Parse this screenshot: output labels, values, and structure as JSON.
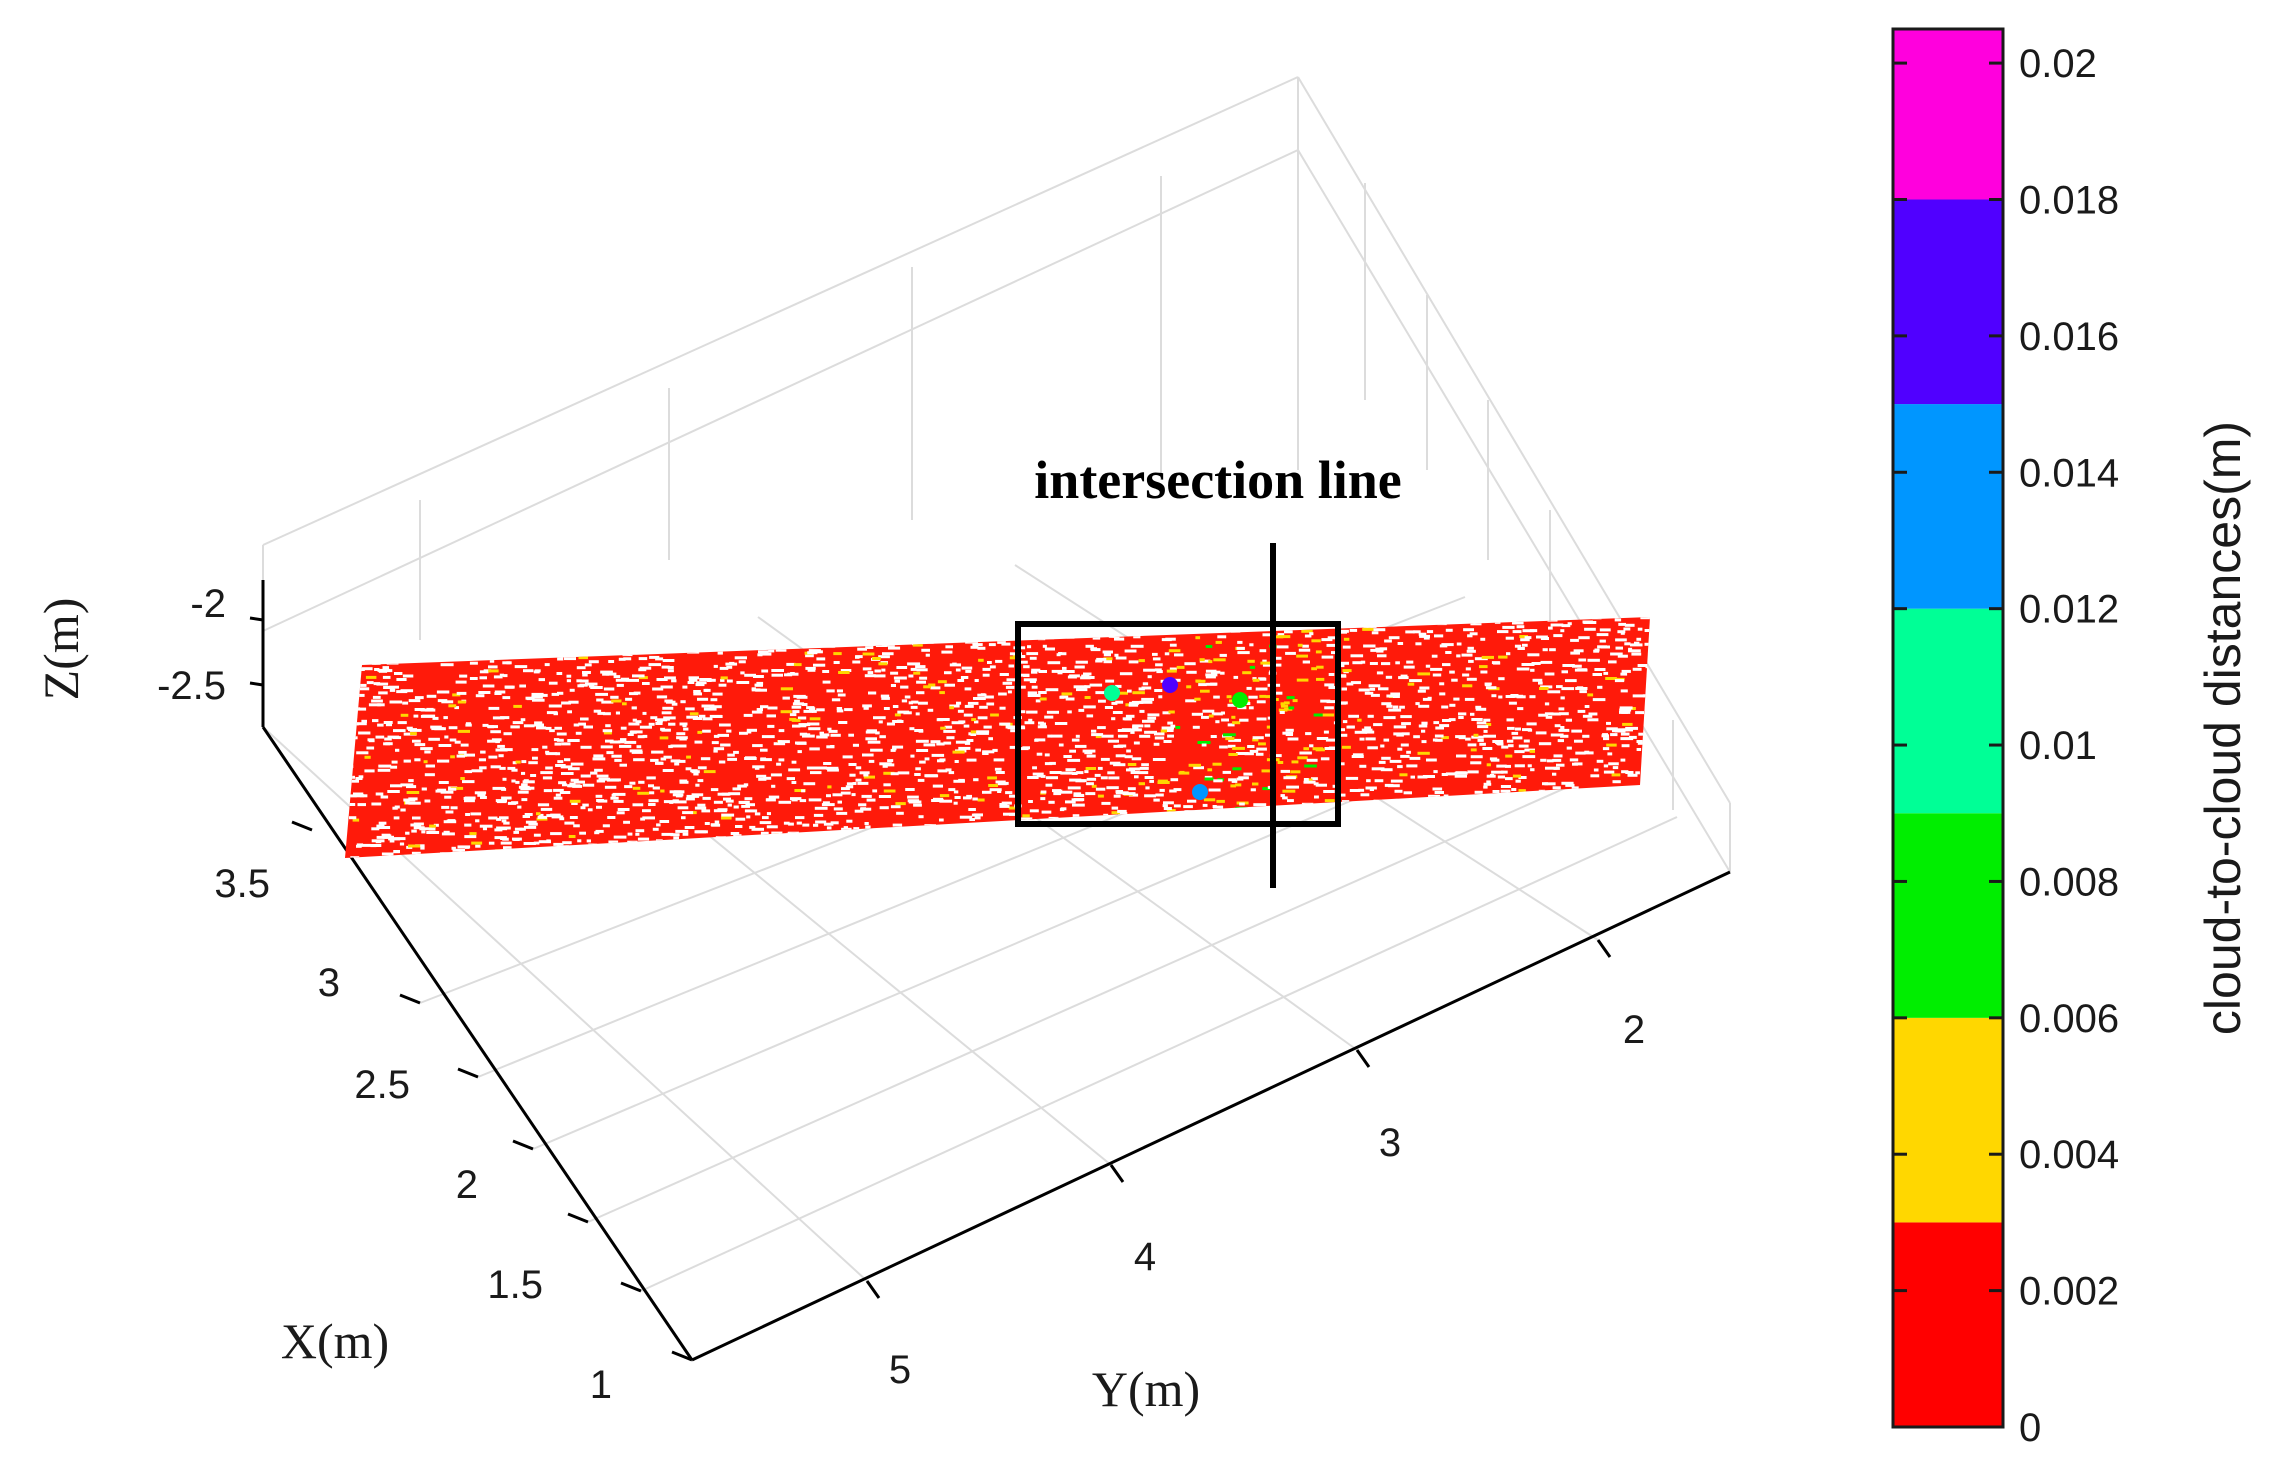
{
  "chart_data": {
    "type": "scatter",
    "subtype": "3d-point-cloud",
    "grid": true,
    "axes": {
      "x": {
        "label": "X(m)",
        "ticks": [
          "1",
          "1.5",
          "2",
          "2.5",
          "3",
          "3.5"
        ]
      },
      "y": {
        "label": "Y(m)",
        "ticks": [
          "5",
          "4",
          "3",
          "2"
        ]
      },
      "z": {
        "label": "Z(m)",
        "ticks": [
          "-2",
          "-2.5"
        ]
      }
    },
    "colorbar": {
      "label": "cloud-to-cloud distances(m)",
      "ticks": [
        "0",
        "0.002",
        "0.004",
        "0.006",
        "0.008",
        "0.01",
        "0.012",
        "0.014",
        "0.016",
        "0.018",
        "0.02"
      ],
      "range": [
        0,
        0.0205
      ],
      "bands": [
        {
          "from": 0,
          "to": 0.003,
          "color": "#ff0000"
        },
        {
          "from": 0.003,
          "to": 0.006,
          "color": "#ffd700"
        },
        {
          "from": 0.006,
          "to": 0.009,
          "color": "#00ee00"
        },
        {
          "from": 0.009,
          "to": 0.012,
          "color": "#00ff96"
        },
        {
          "from": 0.012,
          "to": 0.015,
          "color": "#0096ff"
        },
        {
          "from": 0.015,
          "to": 0.018,
          "color": "#5000ff"
        },
        {
          "from": 0.018,
          "to": 0.0205,
          "color": "#ff00dd"
        }
      ]
    },
    "annotations": [
      {
        "text": "intersection line"
      }
    ],
    "point_color_dominant": "#ff0000"
  }
}
